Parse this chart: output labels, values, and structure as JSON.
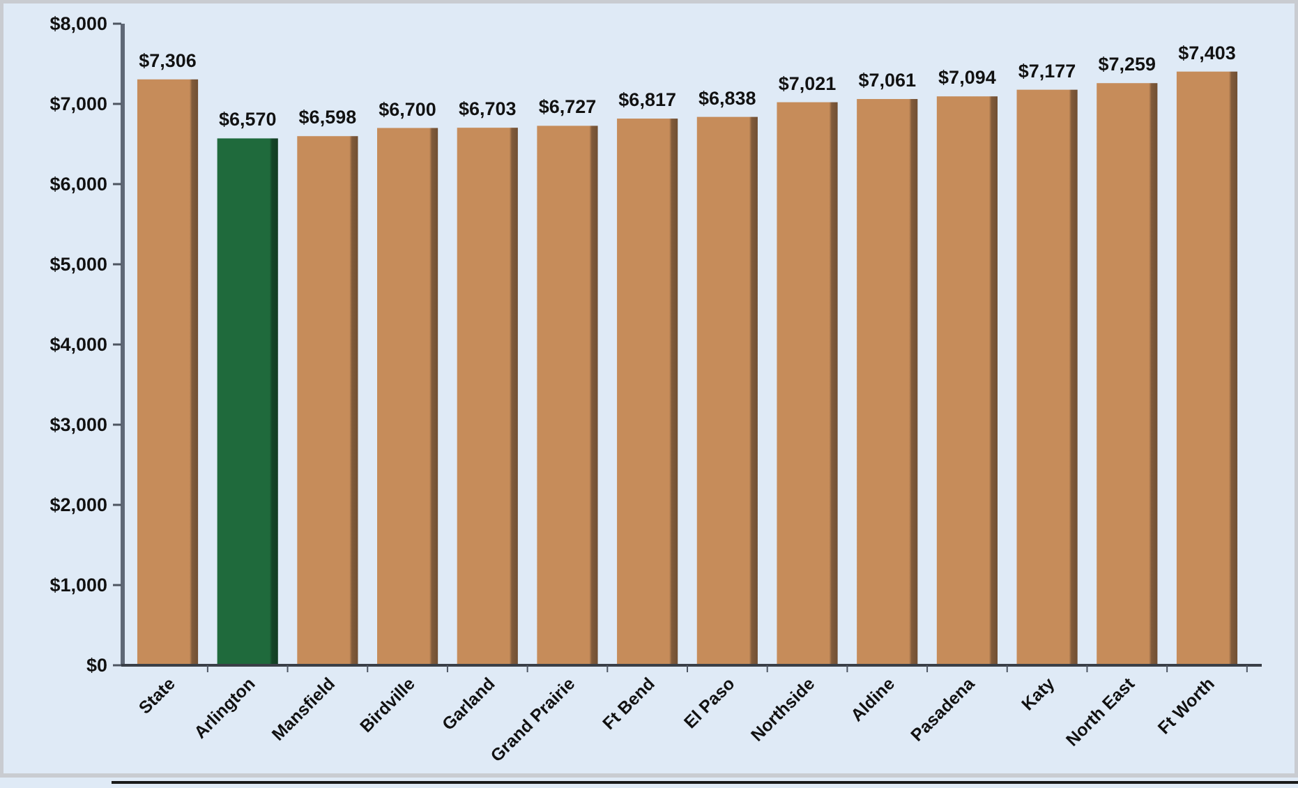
{
  "chart_data": {
    "type": "bar",
    "categories": [
      "State",
      "Arlington",
      "Mansfield",
      "Birdville",
      "Garland",
      "Grand Prairie",
      "Ft Bend",
      "El Paso",
      "Northside",
      "Aldine",
      "Pasadena",
      "Katy",
      "North East",
      "Ft Worth"
    ],
    "values": [
      7306,
      6570,
      6598,
      6700,
      6703,
      6727,
      6817,
      6838,
      7021,
      7061,
      7094,
      7177,
      7259,
      7403
    ],
    "colors": [
      "#c68c5a",
      "#1f6a3c",
      "#c68c5a",
      "#c68c5a",
      "#c68c5a",
      "#c68c5a",
      "#c68c5a",
      "#c68c5a",
      "#c68c5a",
      "#c68c5a",
      "#c68c5a",
      "#c68c5a",
      "#c68c5a",
      "#c68c5a"
    ],
    "value_labels": [
      "$7,306",
      "$6,570",
      "$6,598",
      "$6,700",
      "$6,703",
      "$6,727",
      "$6,817",
      "$6,838",
      "$7,021",
      "$7,061",
      "$7,094",
      "$7,177",
      "$7,259",
      "$7,403"
    ],
    "ylim": [
      0,
      8000
    ],
    "yticks": [
      {
        "value": 0,
        "label": "$0"
      },
      {
        "value": 1000,
        "label": "$1,000"
      },
      {
        "value": 2000,
        "label": "$2,000"
      },
      {
        "value": 3000,
        "label": "$3,000"
      },
      {
        "value": 4000,
        "label": "$4,000"
      },
      {
        "value": 5000,
        "label": "$5,000"
      },
      {
        "value": 6000,
        "label": "$6,000"
      },
      {
        "value": 7000,
        "label": "$7,000"
      },
      {
        "value": 8000,
        "label": "$8,000"
      }
    ]
  }
}
